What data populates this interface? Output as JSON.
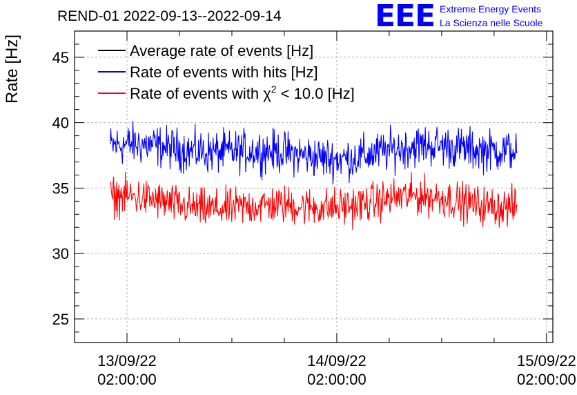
{
  "page": {
    "title": "REND-01 2022-09-13--2022-09-14"
  },
  "logo": {
    "mark": "EEE",
    "line1": "Extreme Energy Events",
    "line2": "La Scienza nelle Scuole"
  },
  "colors": {
    "average": "#000000",
    "hits": "#0000ff",
    "chi2": "#ff0000",
    "grid": "#b4b4b4"
  },
  "chart_data": {
    "type": "line",
    "title": "REND-01 2022-09-13--2022-09-14",
    "xlabel": "",
    "ylabel": "Rate [Hz]",
    "ylim": [
      23.2,
      47.0
    ],
    "xlim": [
      -0.25,
      2.03
    ],
    "grid": true,
    "legend_position": "top-left",
    "y_ticks": [
      25,
      30,
      35,
      40,
      45
    ],
    "y_tick_labels": [
      "25",
      "30",
      "35",
      "40",
      "45"
    ],
    "x_ticks": [
      0,
      1,
      2
    ],
    "x_tick_labels": [
      [
        "13/09/22",
        "02:00:00"
      ],
      [
        "14/09/22",
        "02:00:00"
      ],
      [
        "15/09/22",
        "02:00:00"
      ]
    ],
    "x_range_covered": [
      -0.08,
      1.86
    ],
    "series": [
      {
        "name": "Average rate of events [Hz]",
        "legend_main": "Average rate of events [Hz]",
        "color": "#000000",
        "mean": null,
        "min": null,
        "max": null
      },
      {
        "name": "Rate of events with hits [Hz]",
        "legend_main": "Rate of events with hits [Hz]",
        "color": "#0000ff",
        "mean": 37.8,
        "min": 35.3,
        "max": 40.7
      },
      {
        "name": "Rate of events with χ2 < 10.0 [Hz]",
        "legend_pre": "Rate of events with ",
        "legend_chi": "χ",
        "legend_sup": "2",
        "legend_post": " < 10.0 [Hz]",
        "color": "#ff0000",
        "mean": 33.8,
        "min": 31.2,
        "max": 36.2
      }
    ]
  }
}
